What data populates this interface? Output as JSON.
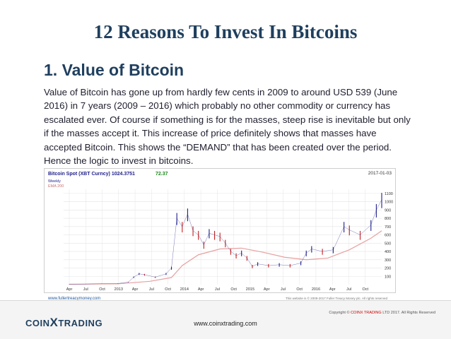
{
  "slide": {
    "title": "12 Reasons To Invest In Bitcoins",
    "subtitle": "1. Value of Bitcoin",
    "body": "Value of Bitcoin has gone up from hardly few cents in 2009 to around USD 539 (June 2016) in 7 years (2009 – 2016) which probably no other commodity or currency has escalated ever. Of course if something is for the masses, steep rise is inevitable but only if the masses accept it. This increase of price definitely shows that masses have accepted Bitcoin. This shows the “DEMAND” that has been created over the period. Hence the logic to invest in bitcoins."
  },
  "chart": {
    "header": "Bitcoin Spot (XBT Curncy) 1024.3751",
    "header_change": "72.37",
    "date": "2017-01-03",
    "legend": [
      "Weekly",
      "EMA 200"
    ],
    "source": "www.fullertreacymoney.com",
    "disclaimer": "This website is © 2009-2017 Fuller Treacy Money plc. All rights reserved",
    "colors": {
      "up": "#1e1e8c",
      "down": "#c81e1e",
      "ema": "#e8a0a0",
      "grid": "#e4e4e4"
    }
  },
  "chart_data": {
    "type": "line",
    "title": "Bitcoin Spot (XBT Curncy) 1024.3751",
    "y_ticks": [
      100,
      200,
      300,
      400,
      500,
      600,
      700,
      800,
      900,
      1000,
      1100
    ],
    "ylim": [
      0,
      1150
    ],
    "x_tick_labels": [
      "Apr",
      "Jul",
      "Oct",
      "2013",
      "Apr",
      "Jul",
      "Oct",
      "2014",
      "Apr",
      "Jul",
      "Oct",
      "2015",
      "Apr",
      "Jul",
      "Oct",
      "2016",
      "Apr",
      "Jul",
      "Oct"
    ],
    "series": [
      {
        "name": "Weekly",
        "x": [
          "2012-03",
          "2012-06",
          "2012-09",
          "2012-12",
          "2013-02",
          "2013-03",
          "2013-04",
          "2013-05",
          "2013-07",
          "2013-09",
          "2013-10",
          "2013-11",
          "2013-12",
          "2014-01",
          "2014-02",
          "2014-03",
          "2014-04",
          "2014-05",
          "2014-06",
          "2014-07",
          "2014-08",
          "2014-09",
          "2014-10",
          "2014-11",
          "2014-12",
          "2015-01",
          "2015-02",
          "2015-04",
          "2015-06",
          "2015-08",
          "2015-10",
          "2015-11",
          "2015-12",
          "2016-02",
          "2016-04",
          "2016-06",
          "2016-07",
          "2016-09",
          "2016-11",
          "2016-12",
          "2017-01"
        ],
        "values": [
          5,
          7,
          11,
          13,
          30,
          90,
          130,
          120,
          90,
          130,
          200,
          800,
          700,
          850,
          650,
          600,
          480,
          620,
          600,
          580,
          500,
          400,
          350,
          380,
          320,
          220,
          250,
          230,
          240,
          230,
          260,
          380,
          430,
          400,
          420,
          700,
          660,
          600,
          720,
          900,
          1025
        ]
      },
      {
        "name": "EMA 200",
        "x": [
          "2012-03",
          "2012-12",
          "2013-06",
          "2013-10",
          "2013-12",
          "2014-03",
          "2014-07",
          "2014-11",
          "2015-03",
          "2015-07",
          "2015-11",
          "2016-03",
          "2016-07",
          "2016-11",
          "2017-01"
        ],
        "values": [
          5,
          9,
          40,
          85,
          230,
          360,
          430,
          440,
          390,
          330,
          300,
          320,
          420,
          560,
          650
        ]
      }
    ]
  },
  "footer": {
    "website": "www.coinxtrading.com",
    "copyright_prefix": "Copyright ©",
    "copyright_brand": "COINX TRADING",
    "copyright_suffix": "LTD 2017. All Rights Reserved",
    "logo_a": "COIN",
    "logo_x": "X",
    "logo_b": "TRADING"
  }
}
